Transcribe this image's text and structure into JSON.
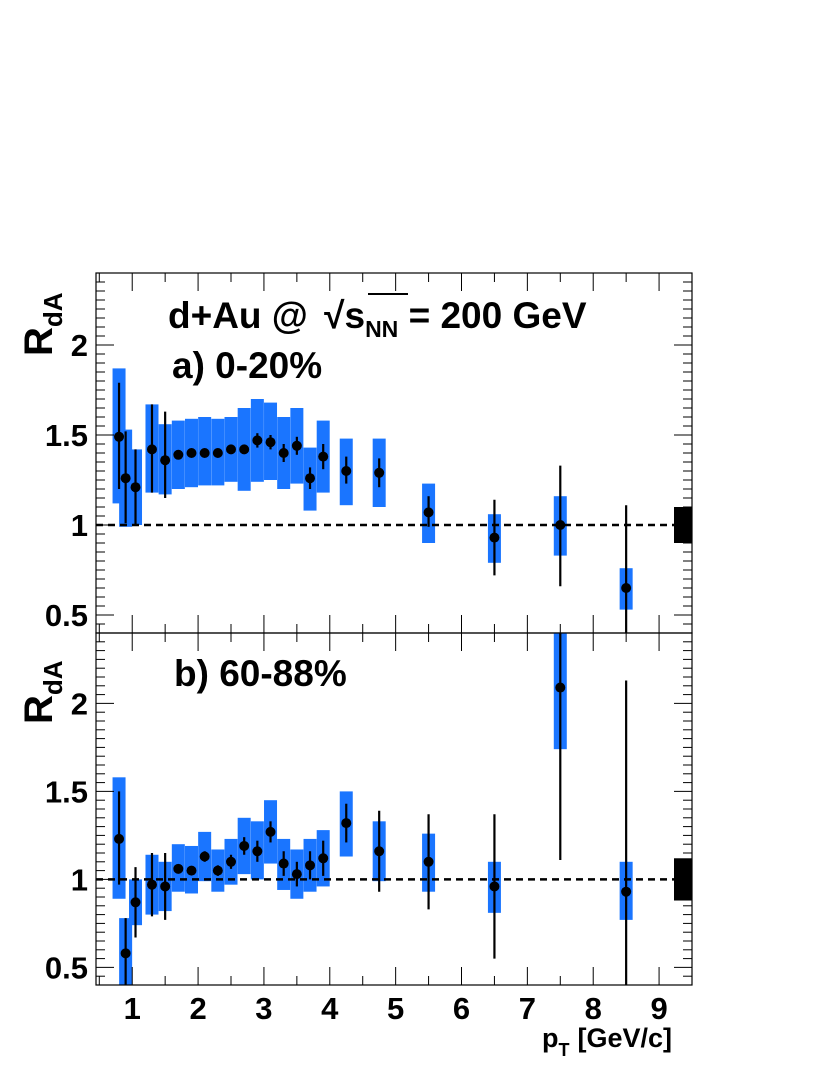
{
  "colors": {
    "syst_band": "#1a75ff",
    "marker": "#000000",
    "reference_line": "#000000",
    "norm_box": "#000000"
  },
  "x_axis": {
    "label_main": "p",
    "label_sub": "T",
    "label_rest": "[GeV/c]",
    "range": [
      0.45,
      9.5
    ],
    "ticks": [
      1,
      2,
      3,
      4,
      5,
      6,
      7,
      8,
      9
    ],
    "tick_labels": [
      "1",
      "2",
      "3",
      "4",
      "5",
      "6",
      "7",
      "8",
      "9"
    ]
  },
  "chart_data": [
    {
      "type": "scatter",
      "panel": "a",
      "title_line1_pre": "d+Au @ ",
      "title_sqrt_s": "s",
      "title_sqrt_sub": "NN",
      "title_line1_post": " = 200 GeV",
      "subtitle": "a) 0-20%",
      "ylabel": "R",
      "ylabel_sub": "dA",
      "ylim": [
        0.4,
        2.4
      ],
      "yticks": [
        0.5,
        1,
        1.5,
        2
      ],
      "ytick_labels": [
        "0.5",
        "1",
        "1.5",
        "2"
      ],
      "reference_y": 1,
      "norm_uncertainty": [
        0.9,
        1.1
      ],
      "points": [
        {
          "x": 0.8,
          "y": 1.49,
          "stat": [
            1.2,
            1.79
          ],
          "sys": [
            1.12,
            1.87
          ]
        },
        {
          "x": 0.9,
          "y": 1.26,
          "stat": [
            1.01,
            1.52
          ],
          "sys": [
            0.99,
            1.53
          ]
        },
        {
          "x": 1.05,
          "y": 1.21,
          "stat": [
            1.0,
            1.42
          ],
          "sys": [
            1.0,
            1.42
          ]
        },
        {
          "x": 1.3,
          "y": 1.42,
          "stat": [
            1.18,
            1.67
          ],
          "sys": [
            1.18,
            1.67
          ]
        },
        {
          "x": 1.5,
          "y": 1.36,
          "stat": [
            1.15,
            1.63
          ],
          "sys": [
            1.17,
            1.56
          ]
        },
        {
          "x": 1.7,
          "y": 1.39,
          "stat": [
            1.37,
            1.41
          ],
          "sys": [
            1.2,
            1.58
          ]
        },
        {
          "x": 1.9,
          "y": 1.4,
          "stat": [
            1.38,
            1.42
          ],
          "sys": [
            1.21,
            1.59
          ]
        },
        {
          "x": 2.1,
          "y": 1.4,
          "stat": [
            1.38,
            1.42
          ],
          "sys": [
            1.22,
            1.6
          ]
        },
        {
          "x": 2.3,
          "y": 1.4,
          "stat": [
            1.38,
            1.42
          ],
          "sys": [
            1.22,
            1.59
          ]
        },
        {
          "x": 2.5,
          "y": 1.42,
          "stat": [
            1.4,
            1.44
          ],
          "sys": [
            1.24,
            1.6
          ]
        },
        {
          "x": 2.7,
          "y": 1.42,
          "stat": [
            1.4,
            1.44
          ],
          "sys": [
            1.19,
            1.65
          ]
        },
        {
          "x": 2.9,
          "y": 1.47,
          "stat": [
            1.43,
            1.51
          ],
          "sys": [
            1.24,
            1.7
          ]
        },
        {
          "x": 3.1,
          "y": 1.46,
          "stat": [
            1.42,
            1.5
          ],
          "sys": [
            1.25,
            1.68
          ]
        },
        {
          "x": 3.3,
          "y": 1.4,
          "stat": [
            1.35,
            1.45
          ],
          "sys": [
            1.2,
            1.6
          ]
        },
        {
          "x": 3.5,
          "y": 1.44,
          "stat": [
            1.39,
            1.49
          ],
          "sys": [
            1.23,
            1.65
          ]
        },
        {
          "x": 3.7,
          "y": 1.26,
          "stat": [
            1.2,
            1.32
          ],
          "sys": [
            1.08,
            1.43
          ]
        },
        {
          "x": 3.9,
          "y": 1.38,
          "stat": [
            1.31,
            1.45
          ],
          "sys": [
            1.18,
            1.58
          ]
        },
        {
          "x": 4.25,
          "y": 1.3,
          "stat": [
            1.23,
            1.38
          ],
          "sys": [
            1.11,
            1.48
          ]
        },
        {
          "x": 4.75,
          "y": 1.29,
          "stat": [
            1.21,
            1.37
          ],
          "sys": [
            1.1,
            1.48
          ]
        },
        {
          "x": 5.5,
          "y": 1.07,
          "stat": [
            0.99,
            1.16
          ],
          "sys": [
            0.9,
            1.23
          ]
        },
        {
          "x": 6.5,
          "y": 0.93,
          "stat": [
            0.72,
            1.14
          ],
          "sys": [
            0.79,
            1.06
          ]
        },
        {
          "x": 7.5,
          "y": 1.0,
          "stat": [
            0.66,
            1.33
          ],
          "sys": [
            0.83,
            1.16
          ]
        },
        {
          "x": 8.5,
          "y": 0.65,
          "stat": [
            0.25,
            1.11
          ],
          "sys": [
            0.53,
            0.76
          ]
        }
      ]
    },
    {
      "type": "scatter",
      "panel": "b",
      "subtitle": "b) 60-88%",
      "ylabel": "R",
      "ylabel_sub": "dA",
      "ylim": [
        0.4,
        2.4
      ],
      "yticks": [
        0.5,
        1,
        1.5,
        2
      ],
      "ytick_labels": [
        "0.5",
        "1",
        "1.5",
        "2"
      ],
      "reference_y": 1,
      "norm_uncertainty": [
        0.88,
        1.12
      ],
      "points": [
        {
          "x": 0.8,
          "y": 1.23,
          "stat": [
            0.97,
            1.5
          ],
          "sys": [
            0.89,
            1.58
          ]
        },
        {
          "x": 0.9,
          "y": 0.58,
          "stat": [
            0.4,
            0.78
          ],
          "sys": [
            0.4,
            0.78
          ]
        },
        {
          "x": 1.05,
          "y": 0.87,
          "stat": [
            0.67,
            1.07
          ],
          "sys": [
            0.74,
            1.0
          ]
        },
        {
          "x": 1.3,
          "y": 0.97,
          "stat": [
            0.79,
            1.15
          ],
          "sys": [
            0.8,
            1.14
          ]
        },
        {
          "x": 1.5,
          "y": 0.96,
          "stat": [
            0.77,
            1.15
          ],
          "sys": [
            0.82,
            1.1
          ]
        },
        {
          "x": 1.7,
          "y": 1.06,
          "stat": [
            1.04,
            1.08
          ],
          "sys": [
            0.93,
            1.2
          ]
        },
        {
          "x": 1.9,
          "y": 1.05,
          "stat": [
            1.03,
            1.07
          ],
          "sys": [
            0.92,
            1.19
          ]
        },
        {
          "x": 2.1,
          "y": 1.13,
          "stat": [
            1.1,
            1.16
          ],
          "sys": [
            0.99,
            1.27
          ]
        },
        {
          "x": 2.3,
          "y": 1.05,
          "stat": [
            1.02,
            1.08
          ],
          "sys": [
            0.93,
            1.17
          ]
        },
        {
          "x": 2.5,
          "y": 1.1,
          "stat": [
            1.06,
            1.14
          ],
          "sys": [
            0.97,
            1.23
          ]
        },
        {
          "x": 2.7,
          "y": 1.19,
          "stat": [
            1.14,
            1.24
          ],
          "sys": [
            1.03,
            1.35
          ]
        },
        {
          "x": 2.9,
          "y": 1.16,
          "stat": [
            1.1,
            1.22
          ],
          "sys": [
            1.0,
            1.33
          ]
        },
        {
          "x": 3.1,
          "y": 1.27,
          "stat": [
            1.21,
            1.33
          ],
          "sys": [
            1.09,
            1.45
          ]
        },
        {
          "x": 3.3,
          "y": 1.09,
          "stat": [
            1.02,
            1.16
          ],
          "sys": [
            0.94,
            1.23
          ]
        },
        {
          "x": 3.5,
          "y": 1.03,
          "stat": [
            0.96,
            1.1
          ],
          "sys": [
            0.89,
            1.17
          ]
        },
        {
          "x": 3.7,
          "y": 1.08,
          "stat": [
            1.0,
            1.16
          ],
          "sys": [
            0.93,
            1.23
          ]
        },
        {
          "x": 3.9,
          "y": 1.12,
          "stat": [
            1.02,
            1.22
          ],
          "sys": [
            0.96,
            1.28
          ]
        },
        {
          "x": 4.25,
          "y": 1.32,
          "stat": [
            1.21,
            1.43
          ],
          "sys": [
            1.13,
            1.5
          ]
        },
        {
          "x": 4.75,
          "y": 1.16,
          "stat": [
            0.93,
            1.39
          ],
          "sys": [
            0.99,
            1.33
          ]
        },
        {
          "x": 5.5,
          "y": 1.1,
          "stat": [
            0.83,
            1.37
          ],
          "sys": [
            0.93,
            1.26
          ]
        },
        {
          "x": 6.5,
          "y": 0.96,
          "stat": [
            0.55,
            1.37
          ],
          "sys": [
            0.81,
            1.1
          ]
        },
        {
          "x": 7.5,
          "y": 2.09,
          "stat": [
            1.11,
            2.4
          ],
          "sys": [
            1.74,
            2.4
          ]
        },
        {
          "x": 8.5,
          "y": 0.93,
          "stat": [
            0.4,
            2.13
          ],
          "sys": [
            0.77,
            1.1
          ]
        }
      ]
    }
  ]
}
